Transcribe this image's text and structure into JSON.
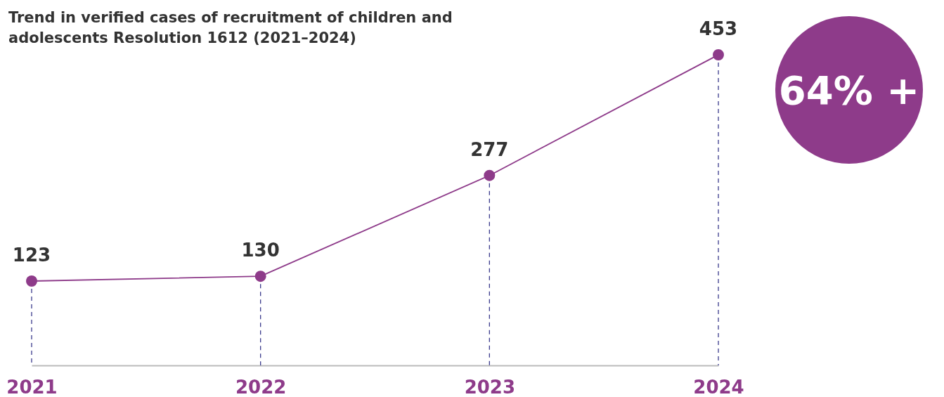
{
  "chart_data": {
    "type": "line",
    "title": "Trend in verified cases of recruitment of children and adolescents Resolution 1612 (2021–2024)",
    "categories": [
      "2021",
      "2022",
      "2023",
      "2024"
    ],
    "series": [
      {
        "color": "#8e3b8a",
        "values": [
          123,
          130,
          277,
          453
        ]
      }
    ],
    "data_labels": true,
    "marker": "circle",
    "annotations": [
      "64% +"
    ]
  }
}
